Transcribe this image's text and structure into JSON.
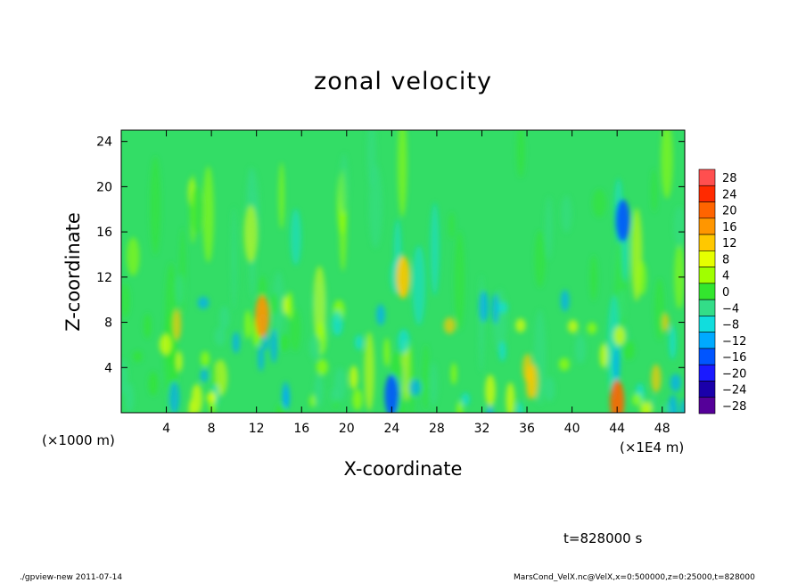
{
  "chart_data": {
    "type": "heatmap",
    "title": "zonal velocity",
    "xlabel": "X-coordinate",
    "ylabel": "Z-coordinate",
    "x_unit_label": "(×1E4 m)",
    "y_unit_label": "(×1000 m)",
    "xlim": [
      0,
      50
    ],
    "ylim": [
      0,
      25
    ],
    "x_ticks": [
      4,
      8,
      12,
      16,
      20,
      24,
      28,
      32,
      36,
      40,
      44,
      48
    ],
    "y_ticks": [
      4,
      8,
      12,
      16,
      20,
      24
    ],
    "colorbar": {
      "levels": [
        28,
        24,
        20,
        16,
        12,
        8,
        4,
        0,
        -4,
        -8,
        -12,
        -16,
        -20,
        -24,
        -28
      ],
      "colors": [
        "#ff4f4f",
        "#ff2a00",
        "#ff6400",
        "#ff9600",
        "#ffc800",
        "#e6ff00",
        "#a0ff00",
        "#33e62e",
        "#33dd88",
        "#11dddd",
        "#00aaff",
        "#0055ff",
        "#1a1aff",
        "#1a00aa",
        "#550099"
      ]
    },
    "features": [
      {
        "x": 25,
        "z": 12,
        "value": 10
      },
      {
        "x": 44.5,
        "z": 17,
        "value": -18
      },
      {
        "x": 44,
        "z": 1,
        "value": 20
      },
      {
        "x": 12.5,
        "z": 8.5,
        "value": 16
      },
      {
        "x": 24,
        "z": 1.5,
        "value": -18
      }
    ]
  },
  "annotations": {
    "time": "t=828000 s",
    "footer_left": "./gpview-new  2011-07-14",
    "footer_right": "MarsCond_VelX.nc@VelX,x=0:500000,z=0:25000,t=828000"
  }
}
